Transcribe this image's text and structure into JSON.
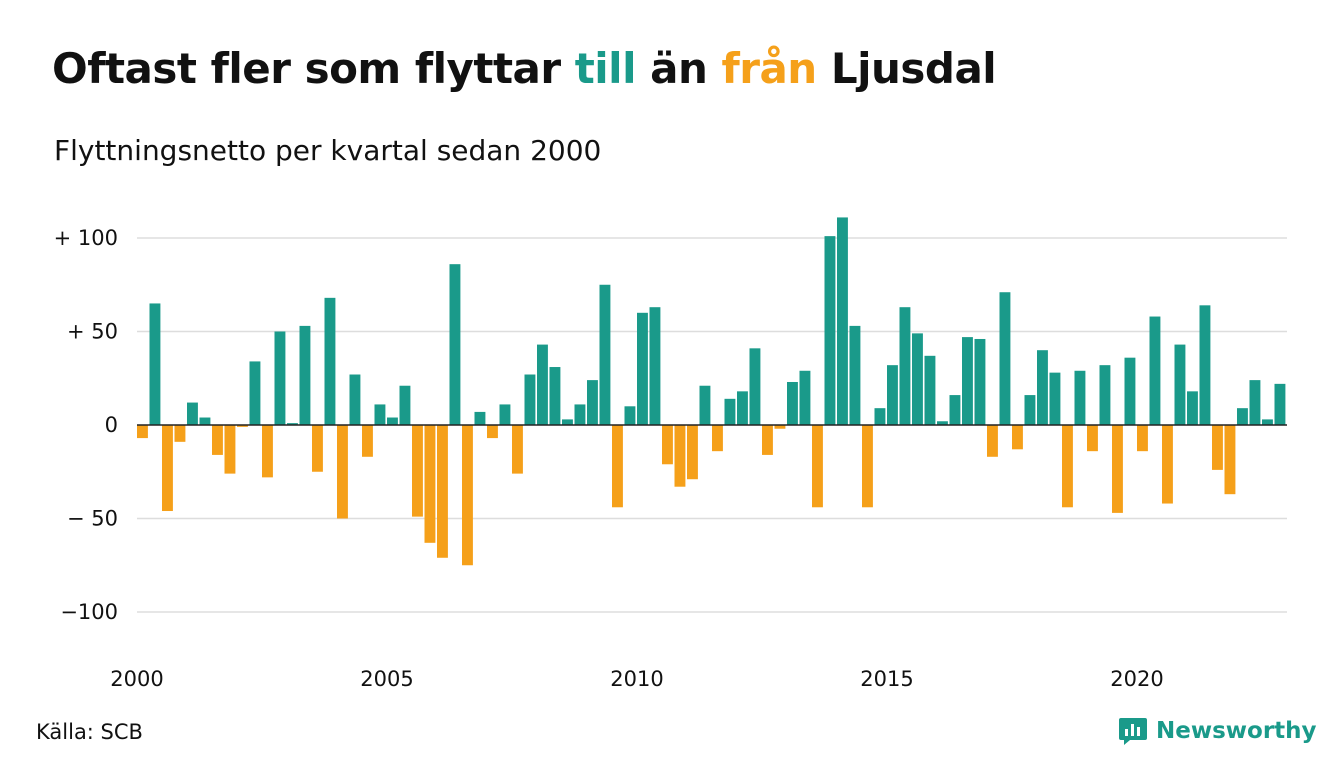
{
  "title": {
    "part1": "Oftast fler som flyttar ",
    "part2": "till",
    "part3": " än ",
    "part4": "från",
    "part5": " Ljusdal"
  },
  "subtitle": "Flyttningsnetto per kvartal sedan 2000",
  "source": "Källa: SCB",
  "logo_text": "Newsworthy",
  "colors": {
    "positive": "#1a9a8a",
    "negative": "#f5a01a",
    "grid": "#dddddd",
    "text": "#111111"
  },
  "icons": {
    "logo": "chart-logo-icon"
  },
  "chart_data": {
    "type": "bar",
    "ylim": [
      -115,
      115
    ],
    "yticks": [
      100,
      50,
      0,
      -50,
      -100
    ],
    "ytick_labels": [
      "+ 100",
      "+  50",
      "0",
      "− 50",
      "−100"
    ],
    "x_tick_labels": [
      "2000",
      "2005",
      "2010",
      "2015",
      "2020"
    ],
    "x_tick_index": [
      0,
      20,
      40,
      60,
      80
    ],
    "grid": true,
    "values": [
      -7,
      65,
      -46,
      -9,
      12,
      4,
      -16,
      -26,
      -1,
      34,
      -28,
      50,
      1,
      53,
      -25,
      68,
      -50,
      27,
      -17,
      11,
      4,
      21,
      -49,
      -63,
      -71,
      86,
      -75,
      7,
      -7,
      11,
      -26,
      27,
      43,
      31,
      3,
      11,
      24,
      75,
      -44,
      10,
      60,
      63,
      -21,
      -33,
      -29,
      21,
      -14,
      14,
      18,
      41,
      -16,
      -2,
      23,
      29,
      -44,
      101,
      111,
      53,
      -44,
      9,
      32,
      63,
      49,
      37,
      2,
      16,
      47,
      46,
      -17,
      71,
      -13,
      16,
      40,
      28,
      -44,
      29,
      -14,
      32,
      -47,
      36,
      -14,
      58,
      -42,
      43,
      18,
      64,
      -24,
      -37,
      9,
      24,
      3,
      22
    ]
  }
}
